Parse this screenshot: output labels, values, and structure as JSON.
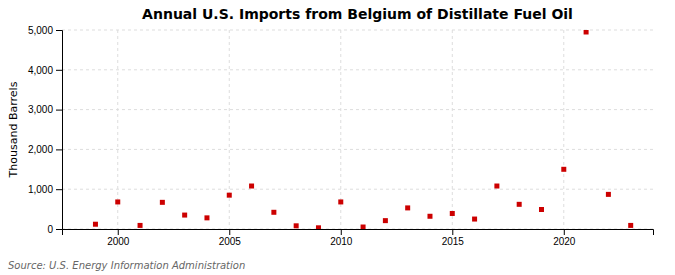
{
  "chart_data": {
    "type": "scatter",
    "title": "Annual U.S. Imports from Belgium of Distillate Fuel Oil",
    "ylabel": "Thousand Barrels",
    "source": "Source: U.S. Energy Information Administration",
    "x": [
      1999,
      2000,
      2001,
      2002,
      2003,
      2004,
      2005,
      2006,
      2007,
      2008,
      2009,
      2010,
      2011,
      2012,
      2013,
      2014,
      2015,
      2016,
      2017,
      2018,
      2019,
      2020,
      2021,
      2022,
      2023
    ],
    "values": [
      120,
      680,
      90,
      670,
      350,
      280,
      850,
      1080,
      420,
      80,
      30,
      680,
      50,
      210,
      530,
      320,
      390,
      250,
      1080,
      620,
      490,
      1500,
      4950,
      870,
      90
    ],
    "color": "#cc0000",
    "marker": "square",
    "xlim": [
      1997.5,
      2024
    ],
    "ylim": [
      0,
      5000
    ],
    "xticks": [
      2000,
      2005,
      2010,
      2015,
      2020
    ],
    "yticks": [
      0,
      {
        "value": 1000,
        "label": "1,000"
      },
      {
        "value": 2000,
        "label": "2,000"
      },
      {
        "value": 3000,
        "label": "3,000"
      },
      {
        "value": 4000,
        "label": "4,000"
      },
      {
        "value": 5000,
        "label": "5,000"
      }
    ],
    "grid": true
  }
}
